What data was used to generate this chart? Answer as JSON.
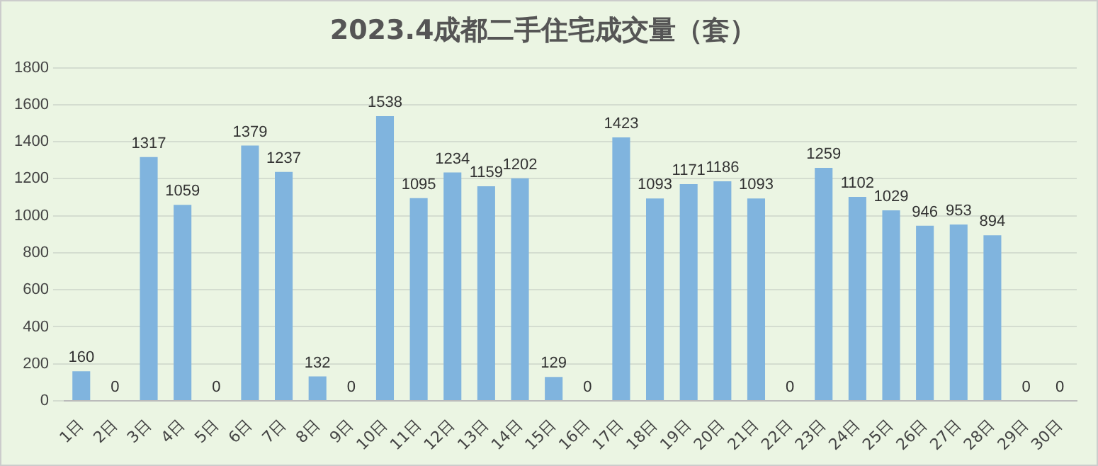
{
  "chart_data": {
    "type": "bar",
    "title": "2023.4成都二手住宅成交量（套）",
    "categories": [
      "1日",
      "2日",
      "3日",
      "4日",
      "5日",
      "6日",
      "7日",
      "8日",
      "9日",
      "10日",
      "11日",
      "12日",
      "13日",
      "14日",
      "15日",
      "16日",
      "17日",
      "18日",
      "19日",
      "20日",
      "21日",
      "22日",
      "23日",
      "24日",
      "25日",
      "26日",
      "27日",
      "28日",
      "29日",
      "30日"
    ],
    "values": [
      160,
      0,
      1317,
      1059,
      0,
      1379,
      1237,
      132,
      0,
      1538,
      1095,
      1234,
      1159,
      1202,
      129,
      0,
      1423,
      1093,
      1171,
      1186,
      1093,
      0,
      1259,
      1102,
      1029,
      946,
      953,
      894,
      0,
      0
    ],
    "color": "#80b4de",
    "ylim": [
      0,
      1800
    ],
    "yticks": [
      0,
      200,
      400,
      600,
      800,
      1000,
      1200,
      1400,
      1600,
      1800
    ],
    "grid": "y",
    "data_labels": true,
    "legend": false
  }
}
